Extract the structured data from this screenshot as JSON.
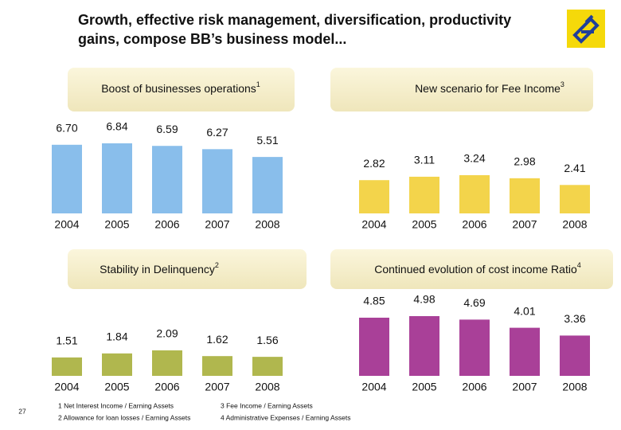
{
  "slide_title": [
    "Growth, effective risk management, diversification, productivity",
    "gains, compose BB’s business model..."
  ],
  "chart_data": [
    {
      "type": "bar",
      "title": "Boost of businesses operations",
      "title_note": "1",
      "categories": [
        "2004",
        "2005",
        "2006",
        "2007",
        "2008"
      ],
      "values": [
        6.7,
        6.84,
        6.59,
        6.27,
        5.51
      ],
      "value_labels": [
        "6.70",
        "6.84",
        "6.59",
        "6.27",
        "5.51"
      ],
      "color": "#7fb9e9"
    },
    {
      "type": "bar",
      "title": "New scenario for Fee Income",
      "title_note": "3",
      "categories": [
        "2004",
        "2005",
        "2006",
        "2007",
        "2008"
      ],
      "values": [
        2.82,
        3.11,
        3.24,
        2.98,
        2.41
      ],
      "value_labels": [
        "2.82",
        "3.11",
        "3.24",
        "2.98",
        "2.41"
      ],
      "color": "#f2d03c"
    },
    {
      "type": "bar",
      "title": "Stability in Delinquency",
      "title_note": "2",
      "categories": [
        "2004",
        "2005",
        "2006",
        "2007",
        "2008"
      ],
      "values": [
        1.51,
        1.84,
        2.09,
        1.62,
        1.56
      ],
      "value_labels": [
        "1.51",
        "1.84",
        "2.09",
        "1.62",
        "1.56"
      ],
      "color": "#a9b13f"
    },
    {
      "type": "bar",
      "title": "Continued evolution of cost income Ratio",
      "title_note": "4",
      "categories": [
        "2004",
        "2005",
        "2006",
        "2007",
        "2008"
      ],
      "values": [
        4.85,
        4.98,
        4.69,
        4.01,
        3.36
      ],
      "value_labels": [
        "4.85",
        "4.98",
        "4.69",
        "4.01",
        "3.36"
      ],
      "color": "#a2308f"
    }
  ],
  "footnotes": [
    "1 Net Interest Income / Earning Assets",
    "2 Allowance for loan losses / Earning Assets",
    "3 Fee Income / Earning Assets",
    "4 Administrative Expenses / Earning Assets"
  ],
  "page_number": "27"
}
